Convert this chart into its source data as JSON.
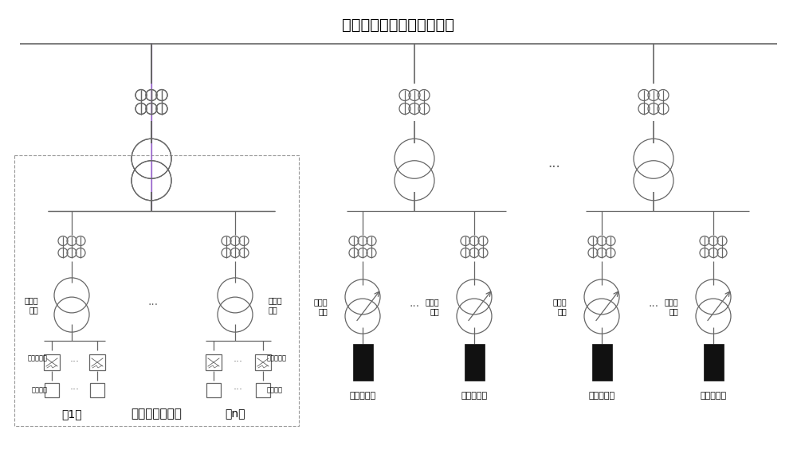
{
  "title": "矿热炉供电系统高压侧电网",
  "title_fontsize": 13,
  "bg_color": "#ffffff",
  "line_color": "#666666",
  "text_color": "#000000",
  "electrode_color": "#111111",
  "lw_main": 1.2,
  "lw_comp": 0.9,
  "label_g1": "第1组",
  "label_gn": "第n组",
  "label_storage_sys": "电化学储能系统",
  "label_boost_xfmr": "升压变\n压器",
  "label_furnace_xfmr": "电炉变\n压器",
  "label_inverter": "储能变流器",
  "label_battery": "储能电池",
  "label_electrode": "矿热炉电极",
  "purple_color": "#9966cc"
}
